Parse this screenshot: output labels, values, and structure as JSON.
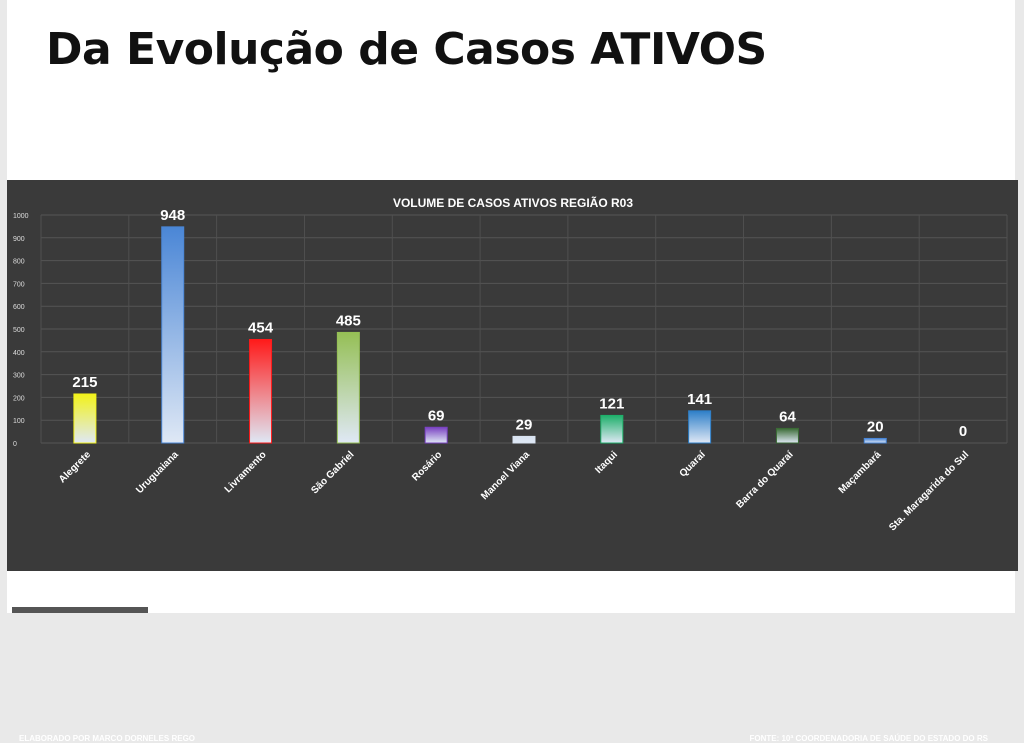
{
  "slide": {
    "title": "Da Evolução de Casos ATIVOS"
  },
  "chart_data": {
    "type": "bar",
    "title": "VOLUME DE CASOS ATIVOS REGIÃO R03",
    "categories": [
      "Alegrete",
      "Uruguaiana",
      "Livramento",
      "São Gabriel",
      "Rosário",
      "Manoel Viana",
      "Itaqui",
      "Quaraí",
      "Barra do Quaraí",
      "Maçambará",
      "Sta. Maragarida do Sul"
    ],
    "values": [
      215,
      948,
      454,
      485,
      69,
      29,
      121,
      141,
      64,
      20,
      0
    ],
    "ylim": [
      0,
      1000
    ],
    "yticks": [
      0,
      100,
      200,
      300,
      400,
      500,
      600,
      700,
      800,
      900,
      1000
    ],
    "grid": true,
    "data_labels": true,
    "bar_colors": [
      "#f2f21a",
      "#4a86d6",
      "#ff1a1a",
      "#95bf55",
      "#7a42c2",
      "#d8e2f0",
      "#1fb06a",
      "#2e7fc8",
      "#3b6b35",
      "#4a86d6",
      "#4a86d6"
    ],
    "footer_left": "ELABORADO POR MARCO DORNELES REGO",
    "footer_right": "FONTE: 10ª COORDENADORIA DE SAÚDE DO ESTADO DO RS"
  }
}
